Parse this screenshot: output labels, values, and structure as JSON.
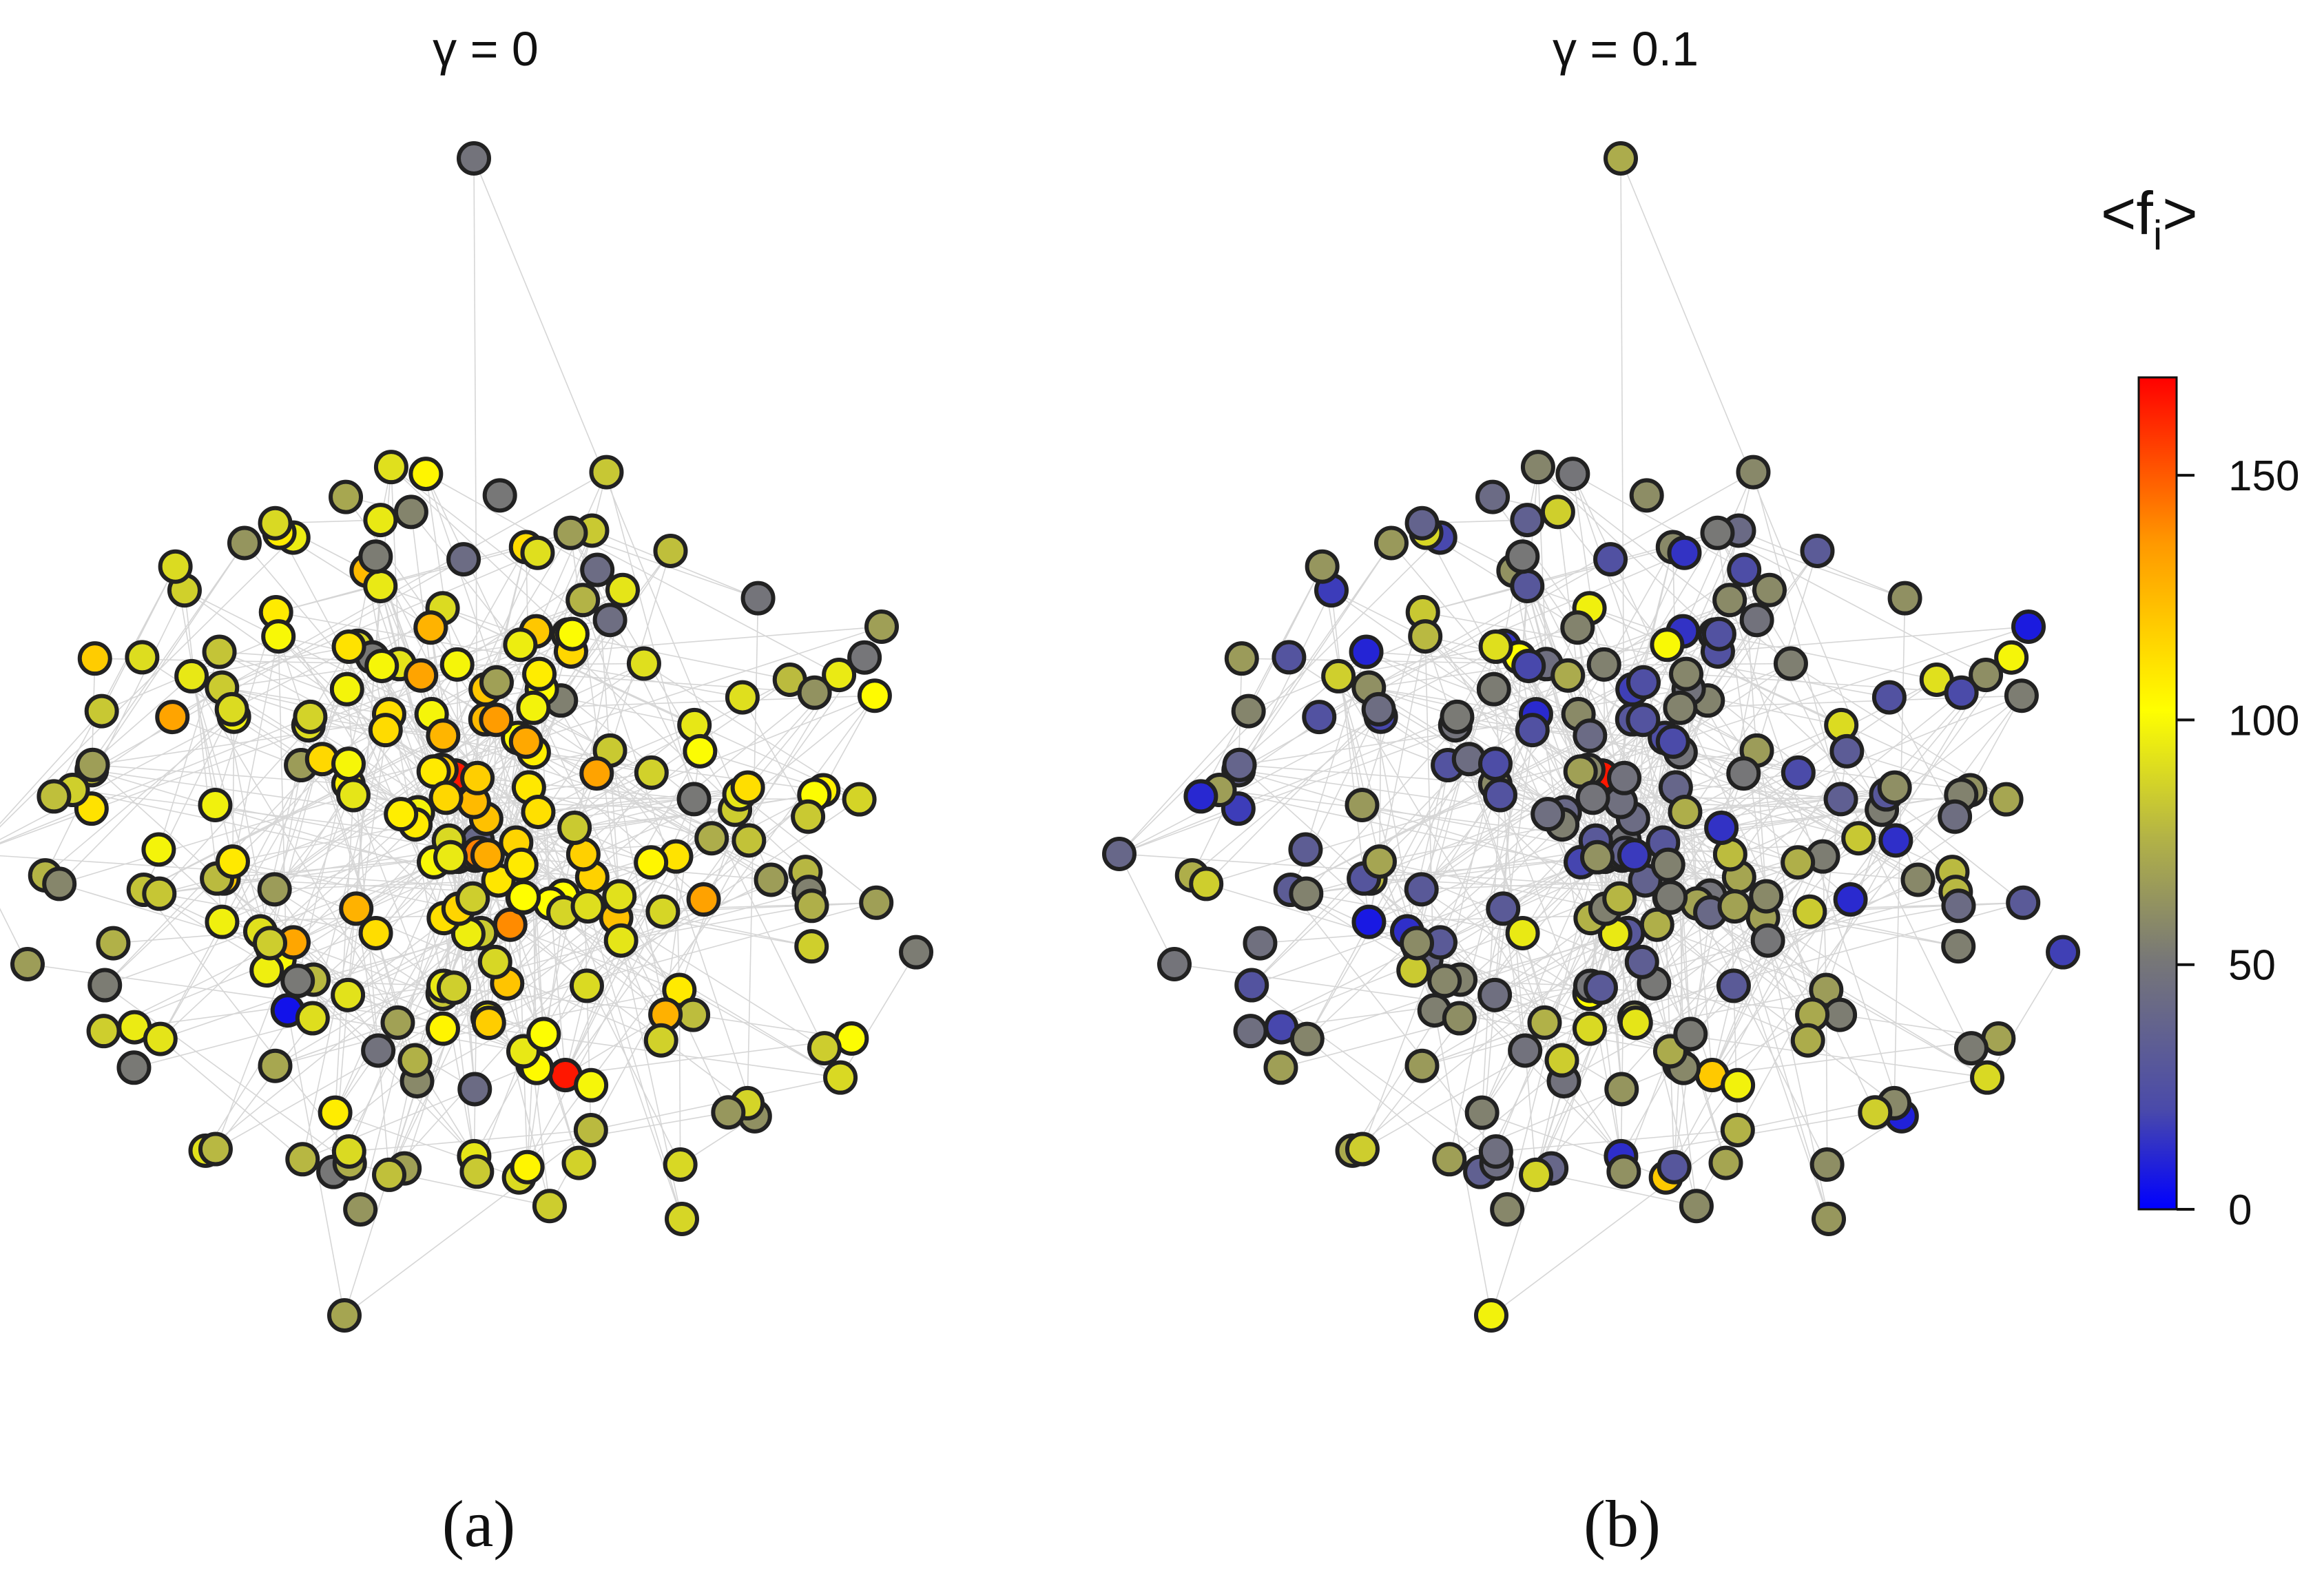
{
  "panels": [
    {
      "title": "γ = 0",
      "label": "(a)"
    },
    {
      "title": "γ = 0.1",
      "label": "(b)"
    }
  ],
  "colorbar": {
    "title_main": "<f",
    "title_sub": "i",
    "title_end": ">",
    "min": 0,
    "max": 170,
    "ticks": [
      0,
      50,
      100,
      150
    ],
    "tick_labels": [
      "0",
      "50",
      "100",
      "150"
    ],
    "colors": {
      "low": "#0000ff",
      "lowmid": "#4a4aaa",
      "mid": "#777777",
      "midhigh": "#b4b445",
      "yellow": "#ffff00",
      "orange": "#ff9900",
      "high": "#ff0000"
    }
  }
}
